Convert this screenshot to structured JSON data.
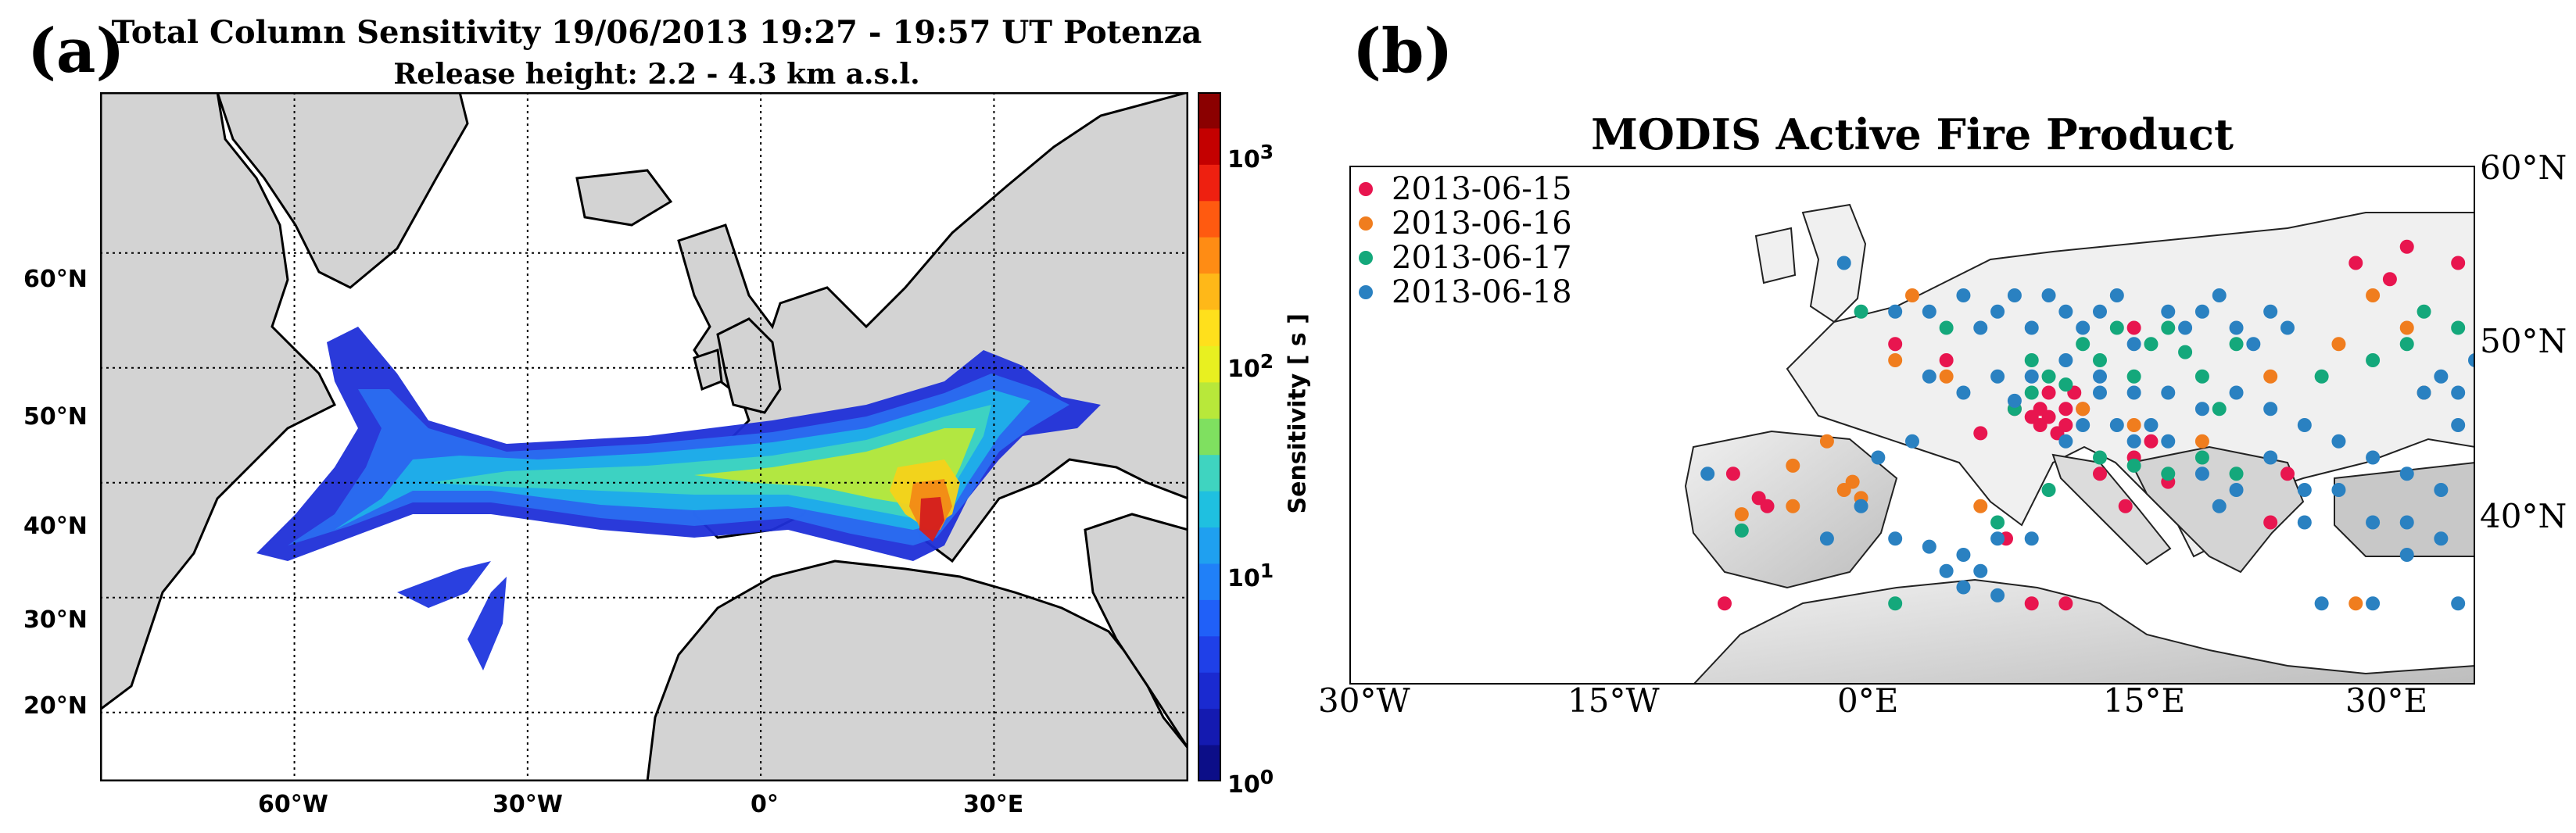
{
  "panel_a": {
    "letter": "(a)",
    "title_line1": "Total Column Sensitivity  19/06/2013 19:27 - 19:57 UT   Potenza",
    "title_line2": "Release height: 2.2  - 4.3 km a.s.l.",
    "colorbar_label": "Sensitivity [ s ]",
    "colorbar_ticks": [
      "10^0",
      "10^1",
      "10^2",
      "10^3"
    ],
    "colors": {
      "land": "#d3d3d3",
      "sea": "#ffffff"
    }
  },
  "panel_b": {
    "letter": "(b)",
    "title": "MODIS Active Fire Product"
  },
  "chart_data": [
    {
      "type": "heatmap",
      "title": "Total Column Sensitivity  19/06/2013 19:27 - 19:57 UT   Potenza",
      "subtitle": "Release height: 2.2  - 4.3 km a.s.l.",
      "xlabel": "",
      "ylabel": "",
      "x_ticks": [
        "60°W",
        "30°W",
        "0°",
        "30°E"
      ],
      "y_ticks": [
        "60°N",
        "50°N",
        "40°N",
        "30°N",
        "20°N"
      ],
      "xlim": [
        -85,
        55
      ],
      "ylim": [
        14,
        74
      ],
      "grid": true,
      "colorbar": {
        "label": "Sensitivity [ s ]",
        "scale": "log",
        "range": [
          1,
          2000
        ],
        "ticks": [
          1,
          10,
          100,
          1000
        ]
      }
    },
    {
      "type": "scatter",
      "title": "MODIS Active Fire Product",
      "x_ticks": [
        "30°W",
        "15°W",
        "0°E",
        "15°E",
        "30°E"
      ],
      "y_ticks": [
        "60°N",
        "50°N",
        "40°N"
      ],
      "xlim": [
        -30,
        36
      ],
      "ylim": [
        28,
        60
      ],
      "legend_position": "top-left",
      "series": [
        {
          "name": "2013-06-15",
          "color": "#e8154f",
          "points": [
            [
              -7.5,
              41
            ],
            [
              -6,
              39.5
            ],
            [
              -5.5,
              39
            ],
            [
              -8,
              33
            ],
            [
              9,
              45
            ],
            [
              10,
              44.5
            ],
            [
              10.5,
              44
            ],
            [
              11,
              44.5
            ],
            [
              12,
              45
            ],
            [
              11.5,
              43.5
            ],
            [
              13,
              45
            ],
            [
              12.5,
              46
            ],
            [
              16,
              42
            ],
            [
              17,
              43
            ],
            [
              14,
              41
            ],
            [
              18,
              40.5
            ],
            [
              15.5,
              39
            ],
            [
              8.5,
              37
            ],
            [
              10,
              33
            ],
            [
              25,
              41
            ],
            [
              31,
              53
            ],
            [
              32,
              55
            ],
            [
              35,
              54
            ],
            [
              29,
              54
            ],
            [
              16,
              50
            ],
            [
              2,
              49
            ],
            [
              5,
              48
            ],
            [
              11,
              46
            ],
            [
              10.5,
              45
            ],
            [
              12,
              44
            ],
            [
              7,
              43.5
            ],
            [
              24,
              38
            ],
            [
              12,
              33
            ]
          ]
        },
        {
          "name": "2013-06-16",
          "color": "#f07d1e",
          "points": [
            [
              -4,
              41.5
            ],
            [
              -1,
              40
            ],
            [
              0,
              39.5
            ],
            [
              -0.5,
              40.5
            ],
            [
              -4,
              39
            ],
            [
              -7,
              38.5
            ],
            [
              -2,
              43
            ],
            [
              3,
              52
            ],
            [
              2,
              48
            ],
            [
              5,
              47
            ],
            [
              13,
              45
            ],
            [
              16,
              44
            ],
            [
              20,
              43
            ],
            [
              24,
              47
            ],
            [
              28,
              49
            ],
            [
              30,
              52
            ],
            [
              32,
              50
            ],
            [
              33,
              46
            ],
            [
              29,
              33
            ],
            [
              7,
              39
            ]
          ]
        },
        {
          "name": "2013-06-17",
          "color": "#14a87b",
          "points": [
            [
              -7,
              37.5
            ],
            [
              2,
              33
            ],
            [
              0,
              51
            ],
            [
              5,
              50
            ],
            [
              10,
              48
            ],
            [
              11,
              47
            ],
            [
              12,
              46.5
            ],
            [
              13,
              49
            ],
            [
              14,
              48
            ],
            [
              15,
              50
            ],
            [
              16,
              47
            ],
            [
              17,
              49
            ],
            [
              18,
              50
            ],
            [
              19,
              48.5
            ],
            [
              20,
              47
            ],
            [
              21,
              45
            ],
            [
              22,
              49
            ],
            [
              14,
              42
            ],
            [
              16,
              41.5
            ],
            [
              18,
              41
            ],
            [
              20,
              42
            ],
            [
              22,
              41
            ],
            [
              10,
              46
            ],
            [
              9,
              45
            ],
            [
              11,
              40
            ],
            [
              8,
              38
            ],
            [
              27,
              47
            ],
            [
              30,
              48
            ],
            [
              33,
              51
            ],
            [
              35,
              50
            ],
            [
              32,
              49
            ]
          ]
        },
        {
          "name": "2013-06-18",
          "color": "#2a81c1",
          "points": [
            [
              -1,
              54
            ],
            [
              2,
              51
            ],
            [
              4,
              51
            ],
            [
              6,
              52
            ],
            [
              7,
              50
            ],
            [
              8,
              51
            ],
            [
              9,
              52
            ],
            [
              10,
              50
            ],
            [
              11,
              52
            ],
            [
              12,
              51
            ],
            [
              13,
              50
            ],
            [
              14,
              51
            ],
            [
              15,
              52
            ],
            [
              16,
              49
            ],
            [
              18,
              51
            ],
            [
              19,
              50
            ],
            [
              20,
              51
            ],
            [
              21,
              52
            ],
            [
              22,
              50
            ],
            [
              23,
              49
            ],
            [
              24,
              51
            ],
            [
              25,
              50
            ],
            [
              4,
              47
            ],
            [
              6,
              46
            ],
            [
              8,
              47
            ],
            [
              10,
              47
            ],
            [
              12,
              48
            ],
            [
              14,
              47
            ],
            [
              16,
              46
            ],
            [
              18,
              46
            ],
            [
              20,
              45
            ],
            [
              22,
              46
            ],
            [
              24,
              45
            ],
            [
              26,
              44
            ],
            [
              28,
              43
            ],
            [
              30,
              42
            ],
            [
              32,
              41
            ],
            [
              34,
              40
            ],
            [
              26,
              40
            ],
            [
              28,
              40
            ],
            [
              30,
              38
            ],
            [
              32,
              38
            ],
            [
              34,
              37
            ],
            [
              22,
              40
            ],
            [
              21,
              39
            ],
            [
              20,
              41
            ],
            [
              18,
              43
            ],
            [
              17,
              44
            ],
            [
              24,
              42
            ],
            [
              26,
              38
            ],
            [
              3,
              43
            ],
            [
              1,
              42
            ],
            [
              0,
              39
            ],
            [
              -2,
              37
            ],
            [
              2,
              37
            ],
            [
              4,
              36.5
            ],
            [
              6,
              36
            ],
            [
              8,
              37
            ],
            [
              7,
              35
            ],
            [
              6,
              34
            ],
            [
              8,
              33.5
            ],
            [
              5,
              35
            ],
            [
              10,
              37
            ],
            [
              -9,
              41
            ],
            [
              12,
              43
            ],
            [
              13,
              44
            ],
            [
              15,
              44
            ],
            [
              16,
              43
            ],
            [
              9,
              45.5
            ],
            [
              14,
              46
            ],
            [
              27,
              33
            ],
            [
              30,
              33
            ],
            [
              35,
              33
            ],
            [
              32,
              36
            ],
            [
              35,
              44
            ],
            [
              35,
              46
            ],
            [
              33,
              46
            ],
            [
              36,
              48
            ],
            [
              34,
              47
            ]
          ]
        }
      ]
    }
  ]
}
